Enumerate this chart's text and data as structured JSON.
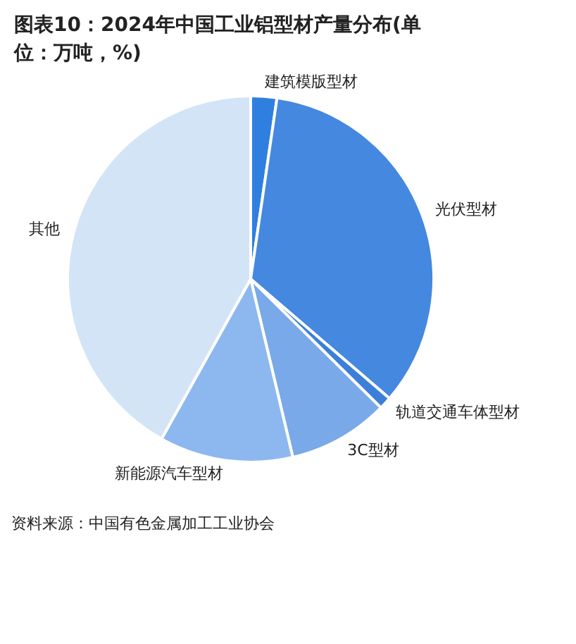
{
  "chart_data": {
    "type": "pie",
    "title": "图表10：2024年中国工业铝型材产量分布(单位：万吨，%)",
    "categories": [
      "建筑模版型材",
      "光伏型材",
      "轨道交通车体型材",
      "3C型材",
      "新能源汽车型材",
      "其他"
    ],
    "values": [
      2.3,
      34.0,
      1.1,
      8.9,
      11.8,
      41.9
    ],
    "colors": [
      "#2f7fe0",
      "#4488e0",
      "#3b7fd8",
      "#79a9e8",
      "#8db8ef",
      "#d4e4f7"
    ],
    "annotations": [
      "资料来源：中国有色金属加工工业协会"
    ],
    "legend": false
  }
}
